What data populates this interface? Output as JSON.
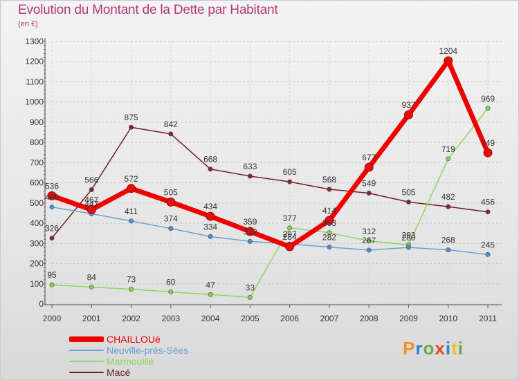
{
  "title": "Evolution du Montant de la Dette par Habitant",
  "subtitle": "(en €)",
  "logo": {
    "text": "Proxiti",
    "letter_colors": [
      "#f0902a",
      "#2a7fd4",
      "#6aa84f",
      "#e04a2c",
      "#2a7fd4",
      "#f0c02a",
      "#6aa84f"
    ]
  },
  "chart_data": {
    "type": "line",
    "title": "Evolution du Montant de la Dette par Habitant",
    "subtitle": "(en €)",
    "xlabel": "",
    "ylabel": "",
    "x": [
      "2000",
      "2001",
      "2002",
      "2003",
      "2004",
      "2005",
      "2006",
      "2007",
      "2008",
      "2009",
      "2010",
      "2011"
    ],
    "ylim": [
      0,
      1300
    ],
    "yticks": [
      0,
      100,
      200,
      300,
      400,
      500,
      600,
      700,
      800,
      900,
      1000,
      1100,
      1200,
      1300
    ],
    "grid": "horizontal dashed",
    "legend_position": "bottom-left",
    "series": [
      {
        "name": "Macé",
        "color": "#6b1f24",
        "marker_fill": "#7a2a2e",
        "values": [
          326,
          566,
          875,
          842,
          668,
          633,
          605,
          568,
          549,
          505,
          482,
          456
        ],
        "labels": [
          "326",
          "566",
          "875",
          "842",
          "668",
          "633",
          "605",
          "568",
          "549",
          "505",
          "482",
          "456"
        ]
      },
      {
        "name": "Marmouillé",
        "color": "#8fd45a",
        "marker_fill": "#84cc4a",
        "values": [
          95,
          84,
          73,
          60,
          47,
          33,
          377,
          353,
          312,
          293,
          719,
          969
        ],
        "labels": [
          "95",
          "84",
          "73",
          "60",
          "47",
          "33",
          "377",
          "353",
          "312",
          "293",
          "719",
          "969"
        ]
      },
      {
        "name": "Neuville-près-Sées",
        "color": "#6aa0cf",
        "marker_fill": "#4a8fd0",
        "values": [
          480,
          447,
          411,
          374,
          334,
          310,
          297,
          282,
          267,
          280,
          268,
          245
        ],
        "labels": [
          "480",
          "447",
          "411",
          "374",
          "334",
          "310",
          "297",
          "282",
          "267",
          "280",
          "268",
          "245"
        ]
      },
      {
        "name": "CHAILLOUé",
        "color": "#ee0000",
        "marker_fill": "#e01010",
        "values": [
          536,
          467,
          572,
          505,
          434,
          359,
          284,
          414,
          677,
          937,
          1204,
          749
        ],
        "labels": [
          "536",
          "467",
          "572",
          "505",
          "434",
          "359",
          "284",
          "414",
          "677",
          "937",
          "1204",
          "749"
        ]
      }
    ]
  },
  "legend": [
    {
      "label": "CHAILLOUé",
      "color": "#ee0000",
      "thickness": 8
    },
    {
      "label": "Neuville-près-Sées",
      "color": "#6aa0cf",
      "thickness": 2
    },
    {
      "label": "Marmouillé",
      "color": "#8fd45a",
      "thickness": 2
    },
    {
      "label": "Macé",
      "color": "#6b1f24",
      "thickness": 2
    }
  ]
}
